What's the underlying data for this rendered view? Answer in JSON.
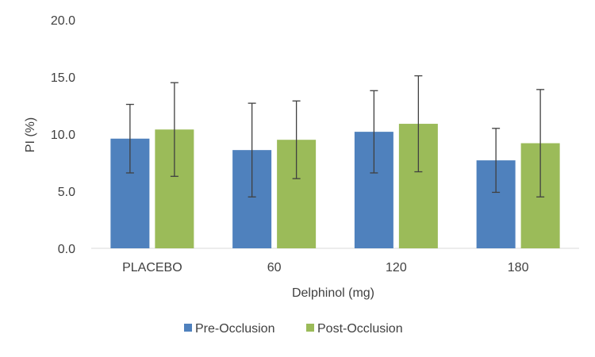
{
  "chart_data": {
    "type": "bar",
    "title": "",
    "xlabel": "Delphinol (mg)",
    "ylabel": "PI (%)",
    "ylim": [
      0,
      20
    ],
    "yticks": [
      "0.0",
      "5.0",
      "10.0",
      "15.0",
      "20.0"
    ],
    "ytick_values": [
      0,
      5,
      10,
      15,
      20
    ],
    "categories": [
      "PLACEBO",
      "60",
      "120",
      "180"
    ],
    "series": [
      {
        "name": "Pre-Occlusion",
        "color": "#4F81BD",
        "values": [
          9.6,
          8.6,
          10.2,
          7.7
        ],
        "error": [
          3.0,
          4.1,
          3.6,
          2.8
        ]
      },
      {
        "name": "Post-Occlusion",
        "color": "#9BBB59",
        "values": [
          10.4,
          9.5,
          10.9,
          9.2
        ],
        "error": [
          4.1,
          3.4,
          4.2,
          4.7
        ]
      }
    ],
    "grid": false,
    "legend_position": "bottom"
  }
}
